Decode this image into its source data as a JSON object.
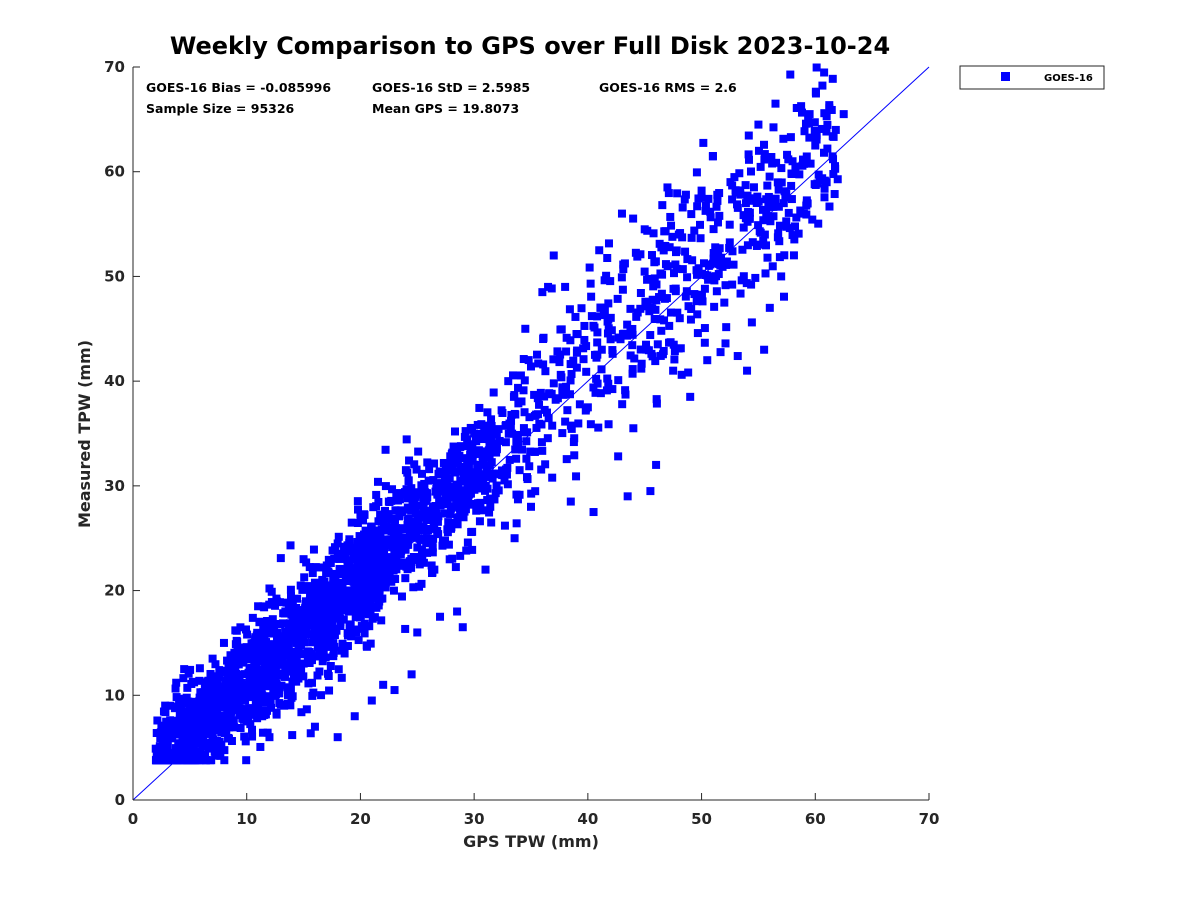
{
  "chart_data": {
    "type": "scatter",
    "title": "Weekly Comparison to GPS over Full Disk 2023-10-24",
    "xlabel": "GPS TPW (mm)",
    "ylabel": "Measured TPW (mm)",
    "xlim": [
      0,
      70
    ],
    "ylim": [
      0,
      70
    ],
    "xticks": [
      "0",
      "10",
      "20",
      "30",
      "40",
      "50",
      "60",
      "70"
    ],
    "yticks": [
      "0",
      "10",
      "20",
      "30",
      "40",
      "50",
      "60",
      "70"
    ],
    "grid": false,
    "legend_position": "outside-top-right",
    "reference_line": {
      "from": [
        0,
        0
      ],
      "to": [
        70,
        70
      ],
      "color": "#0000ff"
    },
    "stats": {
      "bias": "GOES-16 Bias = -0.085996",
      "std": "GOES-16 StD = 2.5985",
      "rms": "GOES-16 RMS = 2.6",
      "sample_size": "Sample Size = 95326",
      "mean_gps": "Mean GPS = 19.8073"
    },
    "series": [
      {
        "name": "GOES-16",
        "color": "#0000ff",
        "marker": "square",
        "points": [
          [
            2.0,
            4.9
          ],
          [
            2.5,
            6.2
          ],
          [
            3.0,
            7.4
          ],
          [
            3.3,
            9.0
          ],
          [
            3.8,
            11.2
          ],
          [
            4.5,
            12.5
          ],
          [
            5.0,
            4.5
          ],
          [
            5.5,
            3.9
          ],
          [
            6.0,
            8.0
          ],
          [
            7.0,
            13.5
          ],
          [
            7.5,
            5.0
          ],
          [
            8.0,
            15.0
          ],
          [
            9.0,
            16.2
          ],
          [
            10.0,
            14.6
          ],
          [
            11.0,
            18.5
          ],
          [
            12.0,
            20.2
          ],
          [
            13.0,
            23.1
          ],
          [
            12.0,
            6.0
          ],
          [
            14.0,
            6.2
          ],
          [
            16.0,
            7.0
          ],
          [
            18.0,
            6.0
          ],
          [
            19.5,
            8.0
          ],
          [
            18.0,
            24.5
          ],
          [
            20.0,
            27.0
          ],
          [
            21.0,
            9.5
          ],
          [
            22.5,
            28.5
          ],
          [
            22.0,
            11.0
          ],
          [
            23.0,
            10.5
          ],
          [
            24.0,
            31.5
          ],
          [
            24.5,
            12.0
          ],
          [
            25.0,
            16.0
          ],
          [
            26.0,
            30.5
          ],
          [
            27.0,
            17.5
          ],
          [
            28.0,
            32.5
          ],
          [
            28.5,
            18.0
          ],
          [
            29.0,
            16.5
          ],
          [
            30.0,
            35.0
          ],
          [
            31.0,
            22.0
          ],
          [
            32.0,
            33.5
          ],
          [
            33.0,
            40.0
          ],
          [
            34.0,
            31.5
          ],
          [
            34.5,
            45.0
          ],
          [
            35.0,
            28.0
          ],
          [
            36.0,
            48.5
          ],
          [
            37.0,
            52.0
          ],
          [
            38.0,
            49.0
          ],
          [
            38.5,
            28.5
          ],
          [
            39.0,
            44.5
          ],
          [
            40.0,
            37.5
          ],
          [
            40.5,
            27.5
          ],
          [
            41.0,
            52.5
          ],
          [
            42.0,
            44.0
          ],
          [
            43.0,
            56.0
          ],
          [
            43.5,
            29.0
          ],
          [
            44.0,
            35.5
          ],
          [
            45.0,
            54.5
          ],
          [
            45.5,
            29.5
          ],
          [
            46.0,
            32.0
          ],
          [
            47.0,
            58.5
          ],
          [
            47.5,
            41.0
          ],
          [
            48.0,
            54.0
          ],
          [
            49.0,
            38.5
          ],
          [
            50.0,
            57.5
          ],
          [
            50.5,
            42.0
          ],
          [
            51.0,
            61.5
          ],
          [
            52.0,
            47.5
          ],
          [
            53.0,
            58.0
          ],
          [
            54.0,
            41.0
          ],
          [
            55.0,
            64.5
          ],
          [
            55.5,
            43.0
          ],
          [
            56.0,
            47.0
          ],
          [
            56.5,
            66.5
          ],
          [
            57.0,
            50.0
          ],
          [
            58.0,
            61.0
          ],
          [
            59.0,
            56.0
          ],
          [
            59.5,
            65.5
          ],
          [
            60.0,
            62.5
          ],
          [
            61.0,
            59.0
          ],
          [
            62.5,
            65.5
          ],
          [
            36.5,
            49.0
          ],
          [
            33.5,
            38.5
          ],
          [
            15.0,
            23.0
          ],
          [
            8.5,
            10.5
          ],
          [
            26.5,
            22.0
          ],
          [
            31.5,
            26.5
          ]
        ]
      }
    ]
  }
}
